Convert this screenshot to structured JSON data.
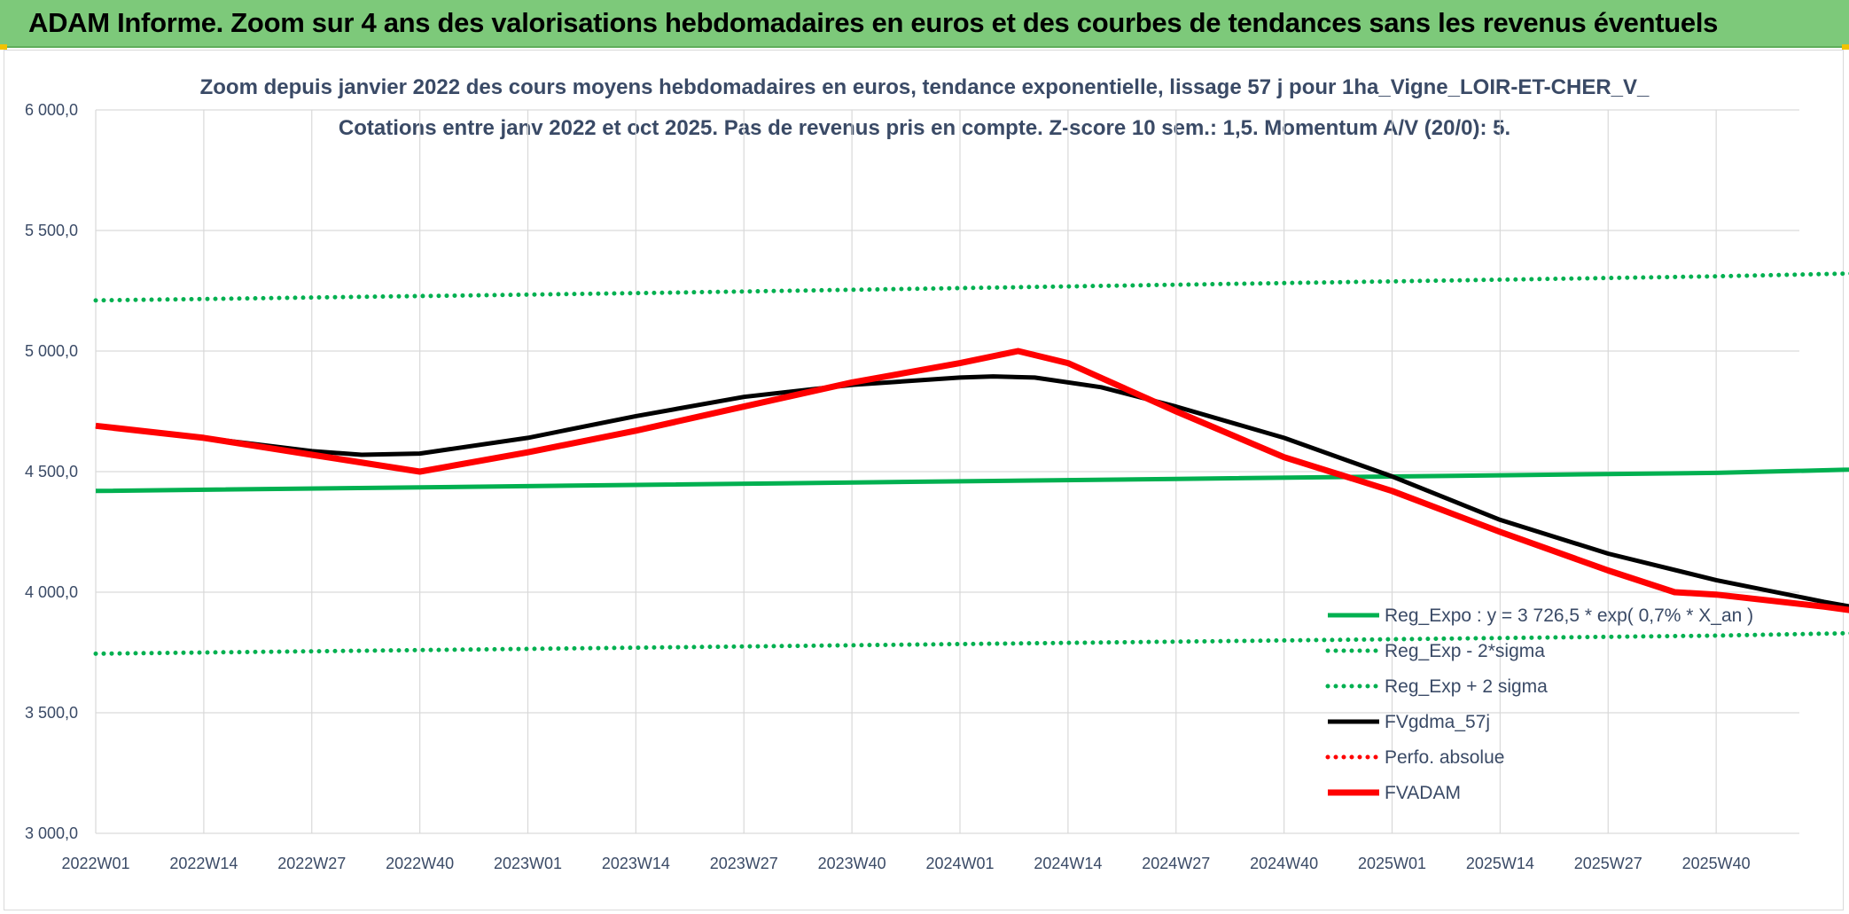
{
  "banner": {
    "title": "ADAM Informe. Zoom sur 4 ans des valorisations hebdomadaires en euros et des courbes de tendances sans les revenus éventuels"
  },
  "colors": {
    "banner": "#7dc97a",
    "green": "#00b050",
    "black": "#000000",
    "red": "#ff0000",
    "grid": "#d9d9d9",
    "text": "#3a4a66"
  },
  "chart_data": {
    "type": "line",
    "title": "Zoom depuis janvier 2022 des cours moyens hebdomadaires en euros, tendance exponentielle, lissage 57 j pour 1ha_Vigne_LOIR-ET-CHER_V_",
    "subtitle": "Cotations entre janv 2022 et oct 2025. Pas de revenus pris en compte. Z-score 10 sem.: 1,5. Momentum A/V (20/0): 5.",
    "x_ticks": [
      "2022W01",
      "2022W14",
      "2022W27",
      "2022W40",
      "2023W01",
      "2023W14",
      "2023W27",
      "2023W40",
      "2024W01",
      "2024W14",
      "2024W27",
      "2024W40",
      "2025W01",
      "2025W14",
      "2025W27",
      "2025W40"
    ],
    "y_ticks": [
      "3 000,0",
      "3 500,0",
      "4 000,0",
      "4 500,0",
      "5 000,0",
      "5 500,0",
      "6 000,0"
    ],
    "ylim": [
      3000,
      6000
    ],
    "grid": true,
    "legend_position": "bottom-right",
    "series": [
      {
        "name": "Reg_Expo : y = 3 726,5 * exp( 0,7% * X_an )",
        "style": "solid",
        "color": "#00b050",
        "points": [
          [
            0,
            4420
          ],
          [
            65,
            4445
          ],
          [
            130,
            4470
          ],
          [
            195,
            4495
          ],
          [
            243,
            4535
          ]
        ]
      },
      {
        "name": "Reg_Exp - 2*sigma",
        "style": "dotted",
        "color": "#00b050",
        "points": [
          [
            0,
            3745
          ],
          [
            65,
            3770
          ],
          [
            130,
            3795
          ],
          [
            195,
            3820
          ],
          [
            243,
            3850
          ]
        ]
      },
      {
        "name": "Reg_Exp + 2 sigma",
        "style": "dotted",
        "color": "#00b050",
        "points": [
          [
            0,
            5210
          ],
          [
            65,
            5240
          ],
          [
            130,
            5275
          ],
          [
            195,
            5310
          ],
          [
            243,
            5345
          ]
        ]
      },
      {
        "name": "FVgdma_57j",
        "style": "solid",
        "color": "#000000",
        "points": [
          [
            0,
            4690
          ],
          [
            13,
            4640
          ],
          [
            26,
            4585
          ],
          [
            32,
            4570
          ],
          [
            39,
            4575
          ],
          [
            52,
            4640
          ],
          [
            65,
            4730
          ],
          [
            78,
            4810
          ],
          [
            91,
            4860
          ],
          [
            104,
            4890
          ],
          [
            108,
            4895
          ],
          [
            113,
            4890
          ],
          [
            121,
            4850
          ],
          [
            130,
            4770
          ],
          [
            143,
            4640
          ],
          [
            156,
            4480
          ],
          [
            169,
            4300
          ],
          [
            182,
            4160
          ],
          [
            195,
            4050
          ],
          [
            208,
            3960
          ],
          [
            221,
            3880
          ],
          [
            234,
            3840
          ],
          [
            243,
            3760
          ]
        ]
      },
      {
        "name": "Perfo. absolue",
        "style": "dotted",
        "color": "#ff0000",
        "points": []
      },
      {
        "name": "FVADAM",
        "style": "solid-thick",
        "color": "#ff0000",
        "points": [
          [
            0,
            4690
          ],
          [
            13,
            4640
          ],
          [
            26,
            4570
          ],
          [
            39,
            4500
          ],
          [
            52,
            4580
          ],
          [
            65,
            4670
          ],
          [
            78,
            4770
          ],
          [
            91,
            4870
          ],
          [
            104,
            4950
          ],
          [
            111,
            5000
          ],
          [
            117,
            4950
          ],
          [
            130,
            4750
          ],
          [
            143,
            4560
          ],
          [
            156,
            4420
          ],
          [
            169,
            4250
          ],
          [
            182,
            4090
          ],
          [
            190,
            4000
          ],
          [
            195,
            3990
          ],
          [
            208,
            3940
          ],
          [
            221,
            3880
          ],
          [
            234,
            3820
          ],
          [
            243,
            3760
          ]
        ]
      }
    ]
  }
}
